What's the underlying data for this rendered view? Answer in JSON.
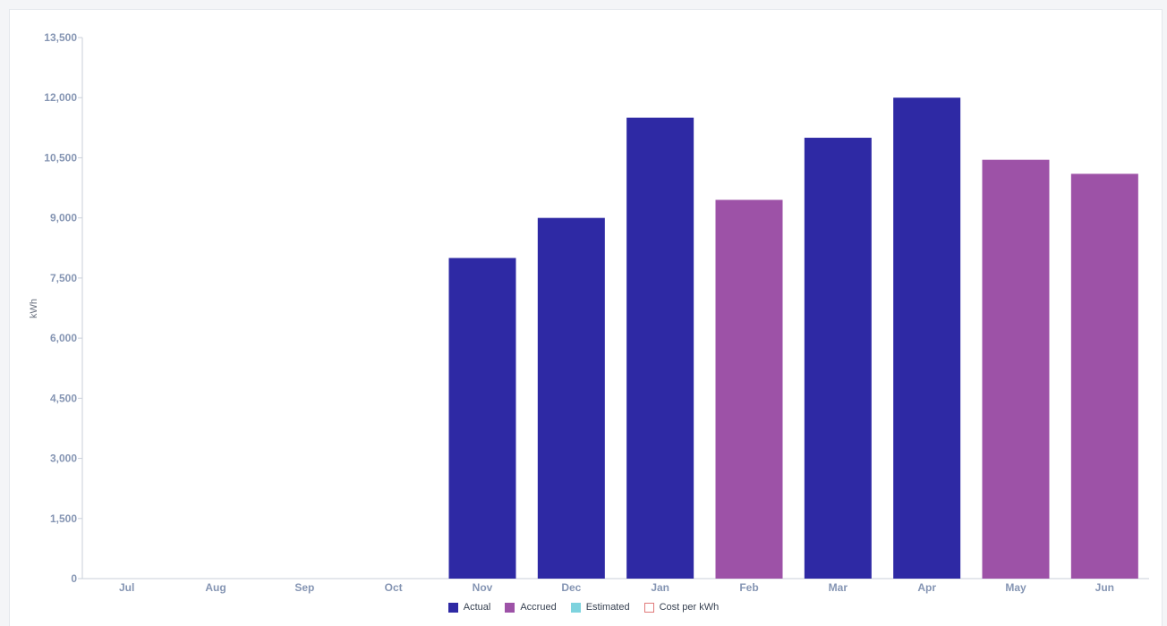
{
  "chart_data": {
    "type": "bar",
    "ylabel": "kWh",
    "ylim": [
      0,
      13500
    ],
    "yticks": [
      "0",
      "1,500",
      "3,000",
      "4,500",
      "6,000",
      "7,500",
      "9,000",
      "10,500",
      "12,000",
      "13,500"
    ],
    "ytick_values": [
      0,
      1500,
      3000,
      4500,
      6000,
      7500,
      9000,
      10500,
      12000,
      13500
    ],
    "grid": false,
    "categories": [
      "Jul",
      "Aug",
      "Sep",
      "Oct",
      "Nov",
      "Dec",
      "Jan",
      "Feb",
      "Mar",
      "Apr",
      "May",
      "Jun"
    ],
    "values": [
      0,
      0,
      0,
      0,
      8000,
      9000,
      11500,
      9450,
      11000,
      12000,
      10450,
      10100
    ],
    "bar_types": [
      "",
      "",
      "",
      "",
      "Actual",
      "Actual",
      "Actual",
      "Accrued",
      "Actual",
      "Actual",
      "Accrued",
      "Accrued"
    ],
    "legend_position": "bottom-center",
    "legend": [
      {
        "label": "Actual",
        "color": "#2e29a4",
        "style": "filled"
      },
      {
        "label": "Accrued",
        "color": "#9d52a7",
        "style": "filled"
      },
      {
        "label": "Estimated",
        "color": "#7ed3de",
        "style": "filled"
      },
      {
        "label": "Cost per kWh",
        "color": "#e07a7a",
        "style": "outline"
      }
    ]
  }
}
